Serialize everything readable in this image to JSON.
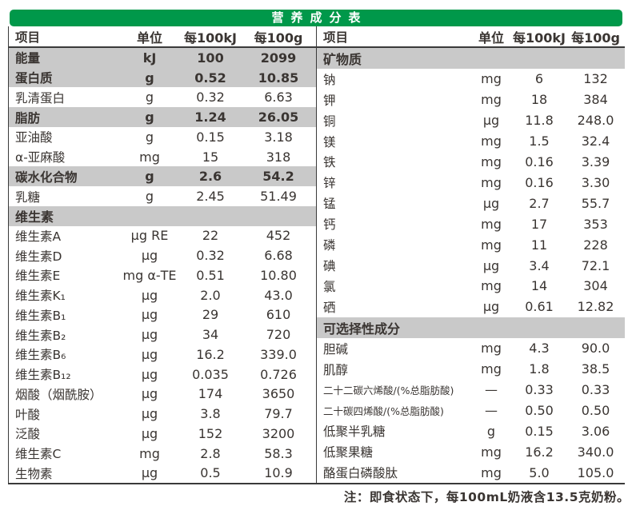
{
  "title": "营养成分表",
  "colors": {
    "header_green": "#00984a",
    "row_highlight": "#c9c9c9",
    "text": "#3a3532",
    "border": "#3a3a3a"
  },
  "columns": {
    "item": "项目",
    "unit": "单位",
    "per100kj": "每100kJ",
    "per100g": "每100g"
  },
  "left_table": {
    "rows": [
      {
        "name": "能量",
        "unit": "kJ",
        "per100kj": "100",
        "per100g": "2099",
        "style": "highlight"
      },
      {
        "name": "蛋白质",
        "unit": "g",
        "per100kj": "0.52",
        "per100g": "10.85",
        "style": "highlight"
      },
      {
        "name": "乳清蛋白",
        "unit": "g",
        "per100kj": "0.32",
        "per100g": "6.63"
      },
      {
        "name": "脂肪",
        "unit": "g",
        "per100kj": "1.24",
        "per100g": "26.05",
        "style": "highlight"
      },
      {
        "name": "亚油酸",
        "unit": "g",
        "per100kj": "0.15",
        "per100g": "3.18"
      },
      {
        "name": "α-亚麻酸",
        "unit": "mg",
        "per100kj": "15",
        "per100g": "318"
      },
      {
        "name": "碳水化合物",
        "unit": "g",
        "per100kj": "2.6",
        "per100g": "54.2",
        "style": "highlight"
      },
      {
        "name": "乳糖",
        "unit": "g",
        "per100kj": "2.45",
        "per100g": "51.49"
      },
      {
        "name": "维生素",
        "style": "section"
      },
      {
        "name": "维生素A",
        "unit": "μg RE",
        "per100kj": "22",
        "per100g": "452"
      },
      {
        "name": "维生素D",
        "unit": "μg",
        "per100kj": "0.32",
        "per100g": "6.68"
      },
      {
        "name": "维生素E",
        "unit": "mg α-TE",
        "per100kj": "0.51",
        "per100g": "10.80"
      },
      {
        "name": "维生素K₁",
        "unit": "μg",
        "per100kj": "2.0",
        "per100g": "43.0"
      },
      {
        "name": "维生素B₁",
        "unit": "μg",
        "per100kj": "29",
        "per100g": "610"
      },
      {
        "name": "维生素B₂",
        "unit": "μg",
        "per100kj": "34",
        "per100g": "720"
      },
      {
        "name": "维生素B₆",
        "unit": "μg",
        "per100kj": "16.2",
        "per100g": "339.0"
      },
      {
        "name": "维生素B₁₂",
        "unit": "μg",
        "per100kj": "0.035",
        "per100g": "0.726"
      },
      {
        "name": "烟酸（烟酰胺）",
        "unit": "μg",
        "per100kj": "174",
        "per100g": "3650"
      },
      {
        "name": "叶酸",
        "unit": "μg",
        "per100kj": "3.8",
        "per100g": "79.7"
      },
      {
        "name": "泛酸",
        "unit": "μg",
        "per100kj": "152",
        "per100g": "3200"
      },
      {
        "name": "维生素C",
        "unit": "mg",
        "per100kj": "2.8",
        "per100g": "58.3"
      },
      {
        "name": "生物素",
        "unit": "μg",
        "per100kj": "0.5",
        "per100g": "10.9"
      }
    ]
  },
  "right_table": {
    "rows": [
      {
        "name": "矿物质",
        "style": "section"
      },
      {
        "name": "钠",
        "unit": "mg",
        "per100kj": "6",
        "per100g": "132"
      },
      {
        "name": "钾",
        "unit": "mg",
        "per100kj": "18",
        "per100g": "384"
      },
      {
        "name": "铜",
        "unit": "μg",
        "per100kj": "11.8",
        "per100g": "248.0"
      },
      {
        "name": "镁",
        "unit": "mg",
        "per100kj": "1.5",
        "per100g": "32.4"
      },
      {
        "name": "铁",
        "unit": "mg",
        "per100kj": "0.16",
        "per100g": "3.39"
      },
      {
        "name": "锌",
        "unit": "mg",
        "per100kj": "0.16",
        "per100g": "3.30"
      },
      {
        "name": "锰",
        "unit": "μg",
        "per100kj": "2.7",
        "per100g": "55.7"
      },
      {
        "name": "钙",
        "unit": "mg",
        "per100kj": "17",
        "per100g": "353"
      },
      {
        "name": "磷",
        "unit": "mg",
        "per100kj": "11",
        "per100g": "228"
      },
      {
        "name": "碘",
        "unit": "μg",
        "per100kj": "3.4",
        "per100g": "72.1"
      },
      {
        "name": "氯",
        "unit": "mg",
        "per100kj": "14",
        "per100g": "304"
      },
      {
        "name": "硒",
        "unit": "μg",
        "per100kj": "0.61",
        "per100g": "12.82"
      },
      {
        "name": "可选择性成分",
        "style": "section"
      },
      {
        "name": "胆碱",
        "unit": "mg",
        "per100kj": "4.3",
        "per100g": "90.0"
      },
      {
        "name": "肌醇",
        "unit": "mg",
        "per100kj": "1.8",
        "per100g": "38.5"
      },
      {
        "name": "二十二碳六烯酸/(%总脂肪酸)",
        "unit": "—",
        "per100kj": "0.33",
        "per100g": "0.33"
      },
      {
        "name": "二十碳四烯酸/(%总脂肪酸)",
        "unit": "—",
        "per100kj": "0.50",
        "per100g": "0.50"
      },
      {
        "name": "低聚半乳糖",
        "unit": "g",
        "per100kj": "0.15",
        "per100g": "3.06"
      },
      {
        "name": "低聚果糖",
        "unit": "mg",
        "per100kj": "16.2",
        "per100g": "340.0"
      },
      {
        "name": "酪蛋白磷酸肽",
        "unit": "mg",
        "per100kj": "5.0",
        "per100g": "105.0"
      }
    ]
  },
  "note": "注：即食状态下，每100mL奶液含13.5克奶粉。"
}
